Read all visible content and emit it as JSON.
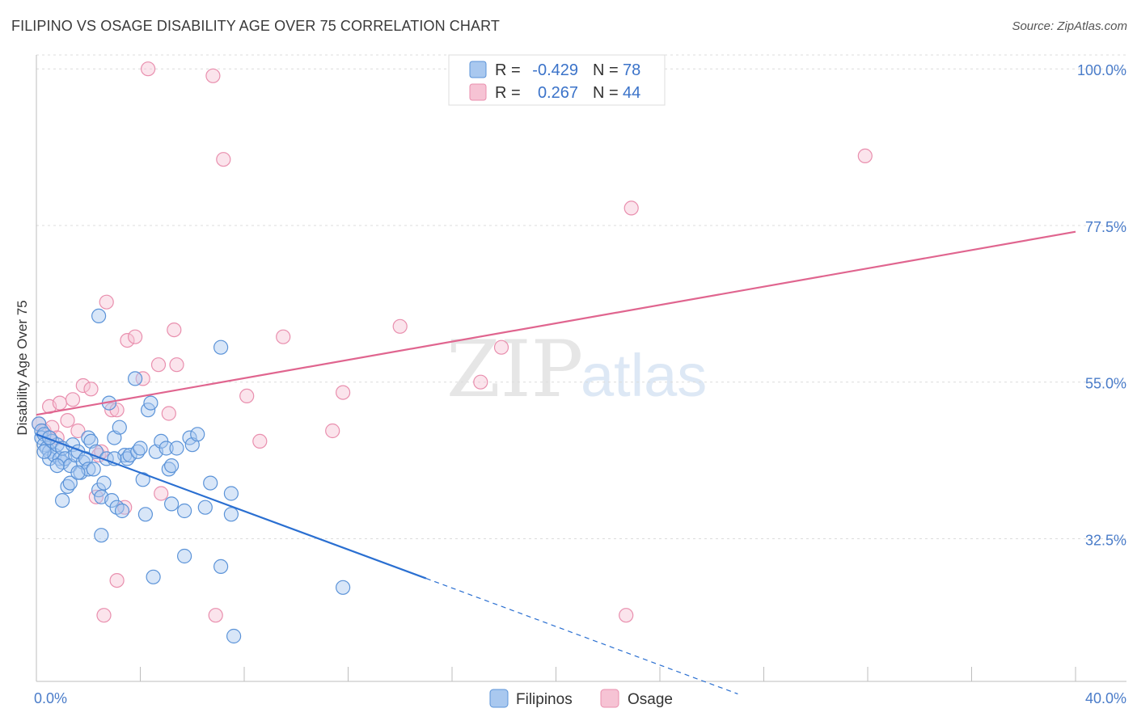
{
  "header": {
    "title": "FILIPINO VS OSAGE DISABILITY AGE OVER 75 CORRELATION CHART",
    "source": "Source: ZipAtlas.com"
  },
  "watermark": {
    "zip": "ZIP",
    "atlas": "atlas"
  },
  "legend": {
    "series": [
      {
        "r_label": "R =",
        "r_value": "-0.429",
        "n_label": "N =",
        "n_value": "78"
      },
      {
        "r_label": "R =",
        "r_value": "0.267",
        "n_label": "N =",
        "n_value": "44"
      }
    ]
  },
  "bottom_legend": {
    "filipinos": "Filipinos",
    "osage": "Osage"
  },
  "colors": {
    "filipinos_stroke": "#5b93d8",
    "filipinos_fill": "#a9c8ef",
    "filipinos_line": "#2a6fd1",
    "osage_stroke": "#e98fae",
    "osage_fill": "#f6c3d4",
    "osage_line": "#e0658f"
  },
  "chart_data": {
    "type": "scatter",
    "title": "FILIPINO VS OSAGE DISABILITY AGE OVER 75 CORRELATION CHART",
    "xlabel": "",
    "ylabel": "Disability Age Over 75",
    "xlim": [
      0,
      40
    ],
    "ylim": [
      12,
      102
    ],
    "x_tick_labels": [
      "0.0%",
      "40.0%"
    ],
    "y_ticks": [
      32.5,
      55.0,
      77.5,
      100.0
    ],
    "y_tick_labels": [
      "32.5%",
      "55.0%",
      "77.5%",
      "100.0%"
    ],
    "grid": true,
    "series": [
      {
        "name": "Filipinos",
        "points": [
          [
            0.1,
            49.0
          ],
          [
            0.2,
            48.0
          ],
          [
            0.2,
            47.0
          ],
          [
            0.3,
            47.5
          ],
          [
            0.3,
            46.0
          ],
          [
            0.4,
            45.5
          ],
          [
            0.5,
            45.0
          ],
          [
            0.5,
            44.0
          ],
          [
            0.6,
            46.5
          ],
          [
            0.7,
            44.5
          ],
          [
            0.8,
            46.0
          ],
          [
            0.9,
            44.0
          ],
          [
            1.0,
            45.5
          ],
          [
            1.0,
            43.5
          ],
          [
            1.1,
            44.0
          ],
          [
            1.2,
            40.0
          ],
          [
            1.3,
            43.0
          ],
          [
            1.4,
            46.0
          ],
          [
            1.5,
            44.5
          ],
          [
            1.6,
            45.0
          ],
          [
            1.7,
            42.0
          ],
          [
            1.8,
            43.5
          ],
          [
            1.9,
            44.0
          ],
          [
            2.0,
            47.0
          ],
          [
            2.0,
            42.5
          ],
          [
            2.1,
            46.5
          ],
          [
            2.2,
            42.5
          ],
          [
            2.3,
            45.0
          ],
          [
            2.4,
            39.5
          ],
          [
            2.5,
            38.5
          ],
          [
            2.6,
            40.5
          ],
          [
            2.7,
            44.0
          ],
          [
            2.8,
            52.0
          ],
          [
            2.9,
            38.0
          ],
          [
            3.0,
            47.0
          ],
          [
            3.1,
            37.0
          ],
          [
            3.2,
            48.5
          ],
          [
            3.3,
            36.5
          ],
          [
            3.4,
            44.5
          ],
          [
            3.5,
            44.0
          ],
          [
            3.6,
            44.5
          ],
          [
            3.8,
            55.5
          ],
          [
            3.9,
            45.0
          ],
          [
            4.0,
            45.5
          ],
          [
            4.1,
            41.0
          ],
          [
            4.2,
            36.0
          ],
          [
            4.3,
            51.0
          ],
          [
            4.4,
            52.0
          ],
          [
            4.5,
            27.0
          ],
          [
            4.6,
            45.0
          ],
          [
            4.8,
            46.5
          ],
          [
            5.0,
            45.5
          ],
          [
            5.1,
            42.5
          ],
          [
            5.2,
            43.0
          ],
          [
            5.2,
            37.5
          ],
          [
            5.4,
            45.5
          ],
          [
            5.7,
            36.5
          ],
          [
            5.7,
            30.0
          ],
          [
            5.9,
            47.0
          ],
          [
            6.0,
            46.0
          ],
          [
            6.2,
            47.5
          ],
          [
            6.5,
            37.0
          ],
          [
            6.7,
            40.5
          ],
          [
            7.1,
            60.0
          ],
          [
            7.1,
            28.5
          ],
          [
            7.5,
            39.0
          ],
          [
            7.5,
            36.0
          ],
          [
            7.6,
            18.5
          ],
          [
            11.8,
            25.5
          ],
          [
            1.0,
            38.0
          ],
          [
            0.5,
            47.0
          ],
          [
            0.8,
            43.0
          ],
          [
            2.4,
            64.5
          ],
          [
            2.5,
            33.0
          ],
          [
            1.3,
            40.5
          ],
          [
            3.0,
            44.0
          ],
          [
            1.6,
            42.0
          ],
          [
            0.3,
            45.0
          ]
        ]
      },
      {
        "name": "Osage",
        "points": [
          [
            0.1,
            49.0
          ],
          [
            0.3,
            48.0
          ],
          [
            0.5,
            51.5
          ],
          [
            0.6,
            48.5
          ],
          [
            0.8,
            47.0
          ],
          [
            0.9,
            52.0
          ],
          [
            1.2,
            49.5
          ],
          [
            1.4,
            52.5
          ],
          [
            1.6,
            48.0
          ],
          [
            1.8,
            54.5
          ],
          [
            2.1,
            54.0
          ],
          [
            2.3,
            38.5
          ],
          [
            2.4,
            44.5
          ],
          [
            2.5,
            45.0
          ],
          [
            2.6,
            21.5
          ],
          [
            2.7,
            66.5
          ],
          [
            2.9,
            51.0
          ],
          [
            3.1,
            51.0
          ],
          [
            3.1,
            26.5
          ],
          [
            3.4,
            37.0
          ],
          [
            3.5,
            61.0
          ],
          [
            3.8,
            61.5
          ],
          [
            4.1,
            55.5
          ],
          [
            4.3,
            100.0
          ],
          [
            4.7,
            57.5
          ],
          [
            4.8,
            39.0
          ],
          [
            5.1,
            50.5
          ],
          [
            5.3,
            62.5
          ],
          [
            5.4,
            57.5
          ],
          [
            6.8,
            99.0
          ],
          [
            6.9,
            21.5
          ],
          [
            7.2,
            87.0
          ],
          [
            8.1,
            53.0
          ],
          [
            8.6,
            46.5
          ],
          [
            9.5,
            61.5
          ],
          [
            11.4,
            48.0
          ],
          [
            11.8,
            53.5
          ],
          [
            14.0,
            63.0
          ],
          [
            17.1,
            55.0
          ],
          [
            17.9,
            60.0
          ],
          [
            22.7,
            21.5
          ],
          [
            22.9,
            80.0
          ],
          [
            31.9,
            87.5
          ],
          [
            0.5,
            47.0
          ]
        ]
      }
    ],
    "fit_lines": [
      {
        "name": "Filipinos",
        "x": [
          0.0,
          15.0
        ],
        "y": [
          47.5,
          26.8
        ],
        "dashed_extension_x": [
          15.0,
          27.0
        ],
        "dashed_extension_y": [
          26.8,
          10.2
        ]
      },
      {
        "name": "Osage",
        "x": [
          0.0,
          40.0
        ],
        "y": [
          50.3,
          76.6
        ]
      }
    ]
  }
}
